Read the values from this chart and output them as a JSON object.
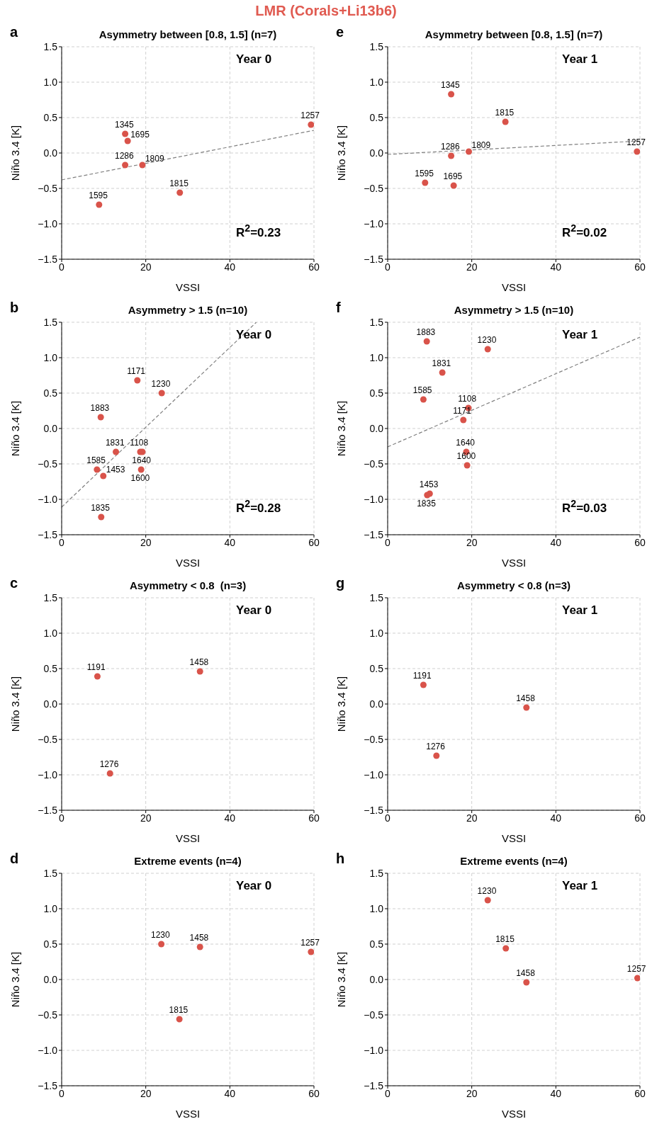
{
  "chart_data": [
    {
      "type": "scatter",
      "title": "Asymmetry between [0.8, 1.5] (n=7)",
      "xlabel": "VSSI",
      "ylabel": "Niño 3.4 [K]",
      "xlim": [
        0,
        60
      ],
      "xticks": [
        0,
        20,
        40,
        60
      ],
      "ylim": [
        -1.5,
        1.5
      ],
      "yticks": [
        {
          "value": -1.5,
          "label": "−1.5"
        },
        {
          "value": -1,
          "label": "−1.0"
        },
        {
          "value": -0.5,
          "label": "−0.5"
        },
        {
          "value": 0,
          "label": "0.0"
        },
        {
          "value": 0.5,
          "label": "0.5"
        },
        {
          "value": 1,
          "label": "1.0"
        },
        {
          "value": 1.5,
          "label": "1.5"
        }
      ],
      "grid": true,
      "annotations": [
        "a",
        "Year 0",
        "R$^{2}$=0.23",
        "LMR (Corals+Li13b6)",
        {
          "text": "1345",
          "x": 15.1,
          "y": 0.27
        },
        {
          "text": "1695",
          "x": 15.7,
          "y": 0.17
        },
        {
          "text": "1286",
          "x": 15.1,
          "y": -0.17
        },
        {
          "text": "1809",
          "x": 19.2,
          "y": -0.17
        },
        {
          "text": "1815",
          "x": 28.1,
          "y": -0.56
        },
        {
          "text": "1595",
          "x": 8.9,
          "y": -0.73
        },
        {
          "text": "1257",
          "x": 59.3,
          "y": 0.4
        }
      ],
      "series": [
        {
          "color": "#d9534a",
          "marker": "circle",
          "x": [
            15.1,
            15.7,
            15.1,
            19.2,
            28.1,
            8.9,
            59.3
          ],
          "values": [
            0.27,
            0.17,
            -0.17,
            -0.17,
            -0.56,
            -0.73,
            0.4
          ]
        },
        {
          "type": "line",
          "color": "#808080",
          "line_style": "dashed",
          "x": [
            0,
            60
          ],
          "values": [
            -0.38,
            0.32
          ]
        }
      ]
    },
    {
      "type": "scatter",
      "title": "Asymmetry between [0.8, 1.5] (n=7)",
      "xlabel": "VSSI",
      "ylabel": "Niño 3.4 [K]",
      "xlim": [
        0,
        60
      ],
      "xticks": [
        0,
        20,
        40,
        60
      ],
      "ylim": [
        -1.5,
        1.5
      ],
      "yticks": [
        {
          "value": -1.5,
          "label": "−1.5"
        },
        {
          "value": -1,
          "label": "−1.0"
        },
        {
          "value": -0.5,
          "label": "−0.5"
        },
        {
          "value": 0,
          "label": "0.0"
        },
        {
          "value": 0.5,
          "label": "0.5"
        },
        {
          "value": 1,
          "label": "1.0"
        },
        {
          "value": 1.5,
          "label": "1.5"
        }
      ],
      "grid": true,
      "annotations": [
        "e",
        "Year 1",
        "R$^{2}$=0.02",
        {
          "text": "1345",
          "x": 15.1,
          "y": 0.83
        },
        {
          "text": "1815",
          "x": 28.0,
          "y": 0.44
        },
        {
          "text": "1286",
          "x": 15.1,
          "y": -0.04
        },
        {
          "text": "1809",
          "x": 19.3,
          "y": 0.02
        },
        {
          "text": "1257",
          "x": 59.3,
          "y": 0.02
        },
        {
          "text": "1595",
          "x": 8.9,
          "y": -0.42
        },
        {
          "text": "1695",
          "x": 15.7,
          "y": -0.46
        }
      ],
      "series": [
        {
          "color": "#d9534a",
          "marker": "circle",
          "x": [
            15.1,
            28.0,
            15.1,
            19.3,
            59.3,
            8.9,
            15.7
          ],
          "values": [
            0.83,
            0.44,
            -0.04,
            0.02,
            0.02,
            -0.42,
            -0.46
          ]
        },
        {
          "type": "line",
          "color": "#808080",
          "line_style": "dashed",
          "x": [
            0,
            60
          ],
          "values": [
            -0.02,
            0.17
          ]
        }
      ]
    },
    {
      "type": "scatter",
      "title": "Asymmetry > 1.5 (n=10)",
      "xlabel": "VSSI",
      "ylabel": "Niño 3.4 [K]",
      "xlim": [
        0,
        60
      ],
      "xticks": [
        0,
        20,
        40,
        60
      ],
      "ylim": [
        -1.5,
        1.5
      ],
      "yticks": [
        {
          "value": -1.5,
          "label": "−1.5"
        },
        {
          "value": -1,
          "label": "−1.0"
        },
        {
          "value": -0.5,
          "label": "−0.5"
        },
        {
          "value": 0,
          "label": "0.0"
        },
        {
          "value": 0.5,
          "label": "0.5"
        },
        {
          "value": 1,
          "label": "1.0"
        },
        {
          "value": 1.5,
          "label": "1.5"
        }
      ],
      "grid": true,
      "annotations": [
        "b",
        "Year 0",
        "R$^{2}$=0.28",
        {
          "text": "1171",
          "x": 18.0,
          "y": 0.68
        },
        {
          "text": "1230",
          "x": 23.8,
          "y": 0.5
        },
        {
          "text": "1883",
          "x": 9.3,
          "y": 0.16
        },
        {
          "text": "1831",
          "x": 12.9,
          "y": -0.33
        },
        {
          "text": "1108",
          "x": 18.7,
          "y": -0.33
        },
        {
          "text": "1640",
          "x": 19.2,
          "y": -0.33
        },
        {
          "text": "1585",
          "x": 8.4,
          "y": -0.58
        },
        {
          "text": "1453",
          "x": 9.9,
          "y": -0.67
        },
        {
          "text": "1600",
          "x": 18.9,
          "y": -0.58
        },
        {
          "text": "1835",
          "x": 9.4,
          "y": -1.25
        }
      ],
      "series": [
        {
          "color": "#d9534a",
          "marker": "circle",
          "x": [
            18.0,
            23.8,
            9.3,
            12.9,
            18.7,
            19.2,
            8.4,
            9.9,
            18.9,
            9.4
          ],
          "values": [
            0.68,
            0.5,
            0.16,
            -0.33,
            -0.33,
            -0.33,
            -0.58,
            -0.67,
            -0.58,
            -1.25
          ]
        },
        {
          "type": "line",
          "color": "#808080",
          "line_style": "dashed",
          "x": [
            0,
            46.3
          ],
          "values": [
            -1.11,
            1.5
          ]
        }
      ]
    },
    {
      "type": "scatter",
      "title": "Asymmetry > 1.5 (n=10)",
      "xlabel": "VSSI",
      "ylabel": "Niño 3.4 [K]",
      "xlim": [
        0,
        60
      ],
      "xticks": [
        0,
        20,
        40,
        60
      ],
      "ylim": [
        -1.5,
        1.5
      ],
      "yticks": [
        {
          "value": -1.5,
          "label": "−1.5"
        },
        {
          "value": -1,
          "label": "−1.0"
        },
        {
          "value": -0.5,
          "label": "−0.5"
        },
        {
          "value": 0,
          "label": "0.0"
        },
        {
          "value": 0.5,
          "label": "0.5"
        },
        {
          "value": 1,
          "label": "1.0"
        },
        {
          "value": 1.5,
          "label": "1.5"
        }
      ],
      "grid": true,
      "annotations": [
        "f",
        "Year 1",
        "R$^{2}$=0.03",
        {
          "text": "1883",
          "x": 9.3,
          "y": 1.23
        },
        {
          "text": "1230",
          "x": 23.8,
          "y": 1.12
        },
        {
          "text": "1831",
          "x": 13.0,
          "y": 0.79
        },
        {
          "text": "1585",
          "x": 8.5,
          "y": 0.41
        },
        {
          "text": "1108",
          "x": 19.2,
          "y": 0.29
        },
        {
          "text": "1171",
          "x": 18.0,
          "y": 0.12
        },
        {
          "text": "1640",
          "x": 18.7,
          "y": -0.33
        },
        {
          "text": "1600",
          "x": 18.9,
          "y": -0.52
        },
        {
          "text": "1453",
          "x": 10.0,
          "y": -0.92
        },
        {
          "text": "1835",
          "x": 9.4,
          "y": -0.94
        }
      ],
      "series": [
        {
          "color": "#d9534a",
          "marker": "circle",
          "x": [
            9.3,
            23.8,
            13.0,
            8.5,
            19.2,
            18.0,
            18.7,
            18.9,
            10.0,
            9.4
          ],
          "values": [
            1.23,
            1.12,
            0.79,
            0.41,
            0.29,
            0.12,
            -0.33,
            -0.52,
            -0.92,
            -0.94
          ]
        },
        {
          "type": "line",
          "color": "#808080",
          "line_style": "dashed",
          "x": [
            0,
            60
          ],
          "values": [
            -0.26,
            1.29
          ]
        }
      ]
    },
    {
      "type": "scatter",
      "title": "Asymmetry < 0.8  (n=3)",
      "xlabel": "VSSI",
      "ylabel": "Niño 3.4 [K]",
      "xlim": [
        0,
        60
      ],
      "xticks": [
        0,
        20,
        40,
        60
      ],
      "ylim": [
        -1.5,
        1.5
      ],
      "yticks": [
        {
          "value": -1.5,
          "label": "−1.5"
        },
        {
          "value": -1,
          "label": "−1.0"
        },
        {
          "value": -0.5,
          "label": "−0.5"
        },
        {
          "value": 0,
          "label": "0.0"
        },
        {
          "value": 0.5,
          "label": "0.5"
        },
        {
          "value": 1,
          "label": "1.0"
        },
        {
          "value": 1.5,
          "label": "1.5"
        }
      ],
      "grid": true,
      "annotations": [
        "c",
        "Year 0",
        {
          "text": "1191",
          "x": 8.5,
          "y": 0.39
        },
        {
          "text": "1458",
          "x": 32.9,
          "y": 0.46
        },
        {
          "text": "1276",
          "x": 11.5,
          "y": -0.98
        }
      ],
      "series": [
        {
          "color": "#d9534a",
          "marker": "circle",
          "x": [
            8.5,
            32.9,
            11.5
          ],
          "values": [
            0.39,
            0.46,
            -0.98
          ]
        }
      ]
    },
    {
      "type": "scatter",
      "title": "Asymmetry < 0.8 (n=3)",
      "xlabel": "VSSI",
      "ylabel": "Niño 3.4 [K]",
      "xlim": [
        0,
        60
      ],
      "xticks": [
        0,
        20,
        40,
        60
      ],
      "ylim": [
        -1.5,
        1.5
      ],
      "yticks": [
        {
          "value": -1.5,
          "label": "−1.5"
        },
        {
          "value": -1,
          "label": "−1.0"
        },
        {
          "value": -0.5,
          "label": "−0.5"
        },
        {
          "value": 0,
          "label": "0.0"
        },
        {
          "value": 0.5,
          "label": "0.5"
        },
        {
          "value": 1,
          "label": "1.0"
        },
        {
          "value": 1.5,
          "label": "1.5"
        }
      ],
      "grid": true,
      "annotations": [
        "g",
        "Year 1",
        {
          "text": "1191",
          "x": 8.5,
          "y": 0.27
        },
        {
          "text": "1458",
          "x": 33.0,
          "y": -0.05
        },
        {
          "text": "1276",
          "x": 11.6,
          "y": -0.73
        }
      ],
      "series": [
        {
          "color": "#d9534a",
          "marker": "circle",
          "x": [
            8.5,
            33.0,
            11.6
          ],
          "values": [
            0.27,
            -0.05,
            -0.73
          ]
        }
      ]
    },
    {
      "type": "scatter",
      "title": "Extreme events (n=4)",
      "xlabel": "VSSI",
      "ylabel": "Niño 3.4 [K]",
      "xlim": [
        0,
        60
      ],
      "xticks": [
        0,
        20,
        40,
        60
      ],
      "ylim": [
        -1.5,
        1.5
      ],
      "yticks": [
        {
          "value": -1.5,
          "label": "−1.5"
        },
        {
          "value": -1,
          "label": "−1.0"
        },
        {
          "value": -0.5,
          "label": "−0.5"
        },
        {
          "value": 0,
          "label": "0.0"
        },
        {
          "value": 0.5,
          "label": "0.5"
        },
        {
          "value": 1,
          "label": "1.0"
        },
        {
          "value": 1.5,
          "label": "1.5"
        }
      ],
      "grid": true,
      "annotations": [
        "d",
        "Year 0",
        {
          "text": "1230",
          "x": 23.7,
          "y": 0.5
        },
        {
          "text": "1458",
          "x": 32.9,
          "y": 0.46
        },
        {
          "text": "1257",
          "x": 59.3,
          "y": 0.39
        },
        {
          "text": "1815",
          "x": 28.0,
          "y": -0.56
        }
      ],
      "series": [
        {
          "color": "#d9534a",
          "marker": "circle",
          "x": [
            23.7,
            32.9,
            59.3,
            28.0
          ],
          "values": [
            0.5,
            0.46,
            0.39,
            -0.56
          ]
        }
      ]
    },
    {
      "type": "scatter",
      "title": "Extreme events (n=4)",
      "xlabel": "VSSI",
      "ylabel": "Niño 3.4 [K]",
      "xlim": [
        0,
        60
      ],
      "xticks": [
        0,
        20,
        40,
        60
      ],
      "ylim": [
        -1.5,
        1.5
      ],
      "yticks": [
        {
          "value": -1.5,
          "label": "−1.5"
        },
        {
          "value": -1,
          "label": "−1.0"
        },
        {
          "value": -0.5,
          "label": "−0.5"
        },
        {
          "value": 0,
          "label": "0.0"
        },
        {
          "value": 0.5,
          "label": "0.5"
        },
        {
          "value": 1,
          "label": "1.0"
        },
        {
          "value": 1.5,
          "label": "1.5"
        }
      ],
      "grid": true,
      "annotations": [
        "h",
        "Year 1",
        {
          "text": "1230",
          "x": 23.8,
          "y": 1.12
        },
        {
          "text": "1815",
          "x": 28.1,
          "y": 0.44
        },
        {
          "text": "1458",
          "x": 33.0,
          "y": -0.04
        },
        {
          "text": "1257",
          "x": 59.4,
          "y": 0.02
        }
      ],
      "series": [
        {
          "color": "#d9534a",
          "marker": "circle",
          "x": [
            23.8,
            28.1,
            33.0,
            59.4
          ],
          "values": [
            1.12,
            0.44,
            -0.04,
            0.02
          ]
        }
      ]
    }
  ]
}
